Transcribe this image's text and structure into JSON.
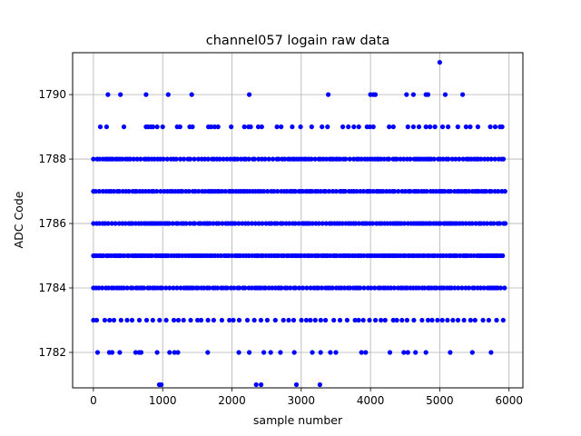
{
  "chart_data": {
    "type": "scatter",
    "title": "channel057 logain raw data",
    "xlabel": "sample number",
    "ylabel": "ADC Code",
    "xlim": [
      -300,
      6200
    ],
    "ylim": [
      1780.9,
      1791.3
    ],
    "xticks": [
      0,
      1000,
      2000,
      3000,
      4000,
      5000,
      6000
    ],
    "yticks": [
      1782,
      1784,
      1786,
      1788,
      1790
    ],
    "grid": true,
    "legend": "none",
    "marker_color": "#0000ff",
    "n_samples": 5950,
    "series": [
      {
        "name": "",
        "dense_levels": [
          1783,
          1784,
          1785,
          1786,
          1787,
          1788
        ],
        "sparse_points": [
          {
            "x": 950,
            "y": 1781
          },
          {
            "x": 980,
            "y": 1781
          },
          {
            "x": 2350,
            "y": 1781
          },
          {
            "x": 2420,
            "y": 1781
          },
          {
            "x": 2930,
            "y": 1781
          },
          {
            "x": 3270,
            "y": 1781
          },
          {
            "x": 60,
            "y": 1782
          },
          {
            "x": 230,
            "y": 1782
          },
          {
            "x": 270,
            "y": 1782
          },
          {
            "x": 380,
            "y": 1782
          },
          {
            "x": 610,
            "y": 1782
          },
          {
            "x": 660,
            "y": 1782
          },
          {
            "x": 690,
            "y": 1782
          },
          {
            "x": 920,
            "y": 1782
          },
          {
            "x": 1100,
            "y": 1782
          },
          {
            "x": 1170,
            "y": 1782
          },
          {
            "x": 1220,
            "y": 1782
          },
          {
            "x": 1650,
            "y": 1782
          },
          {
            "x": 2100,
            "y": 1782
          },
          {
            "x": 2250,
            "y": 1782
          },
          {
            "x": 2460,
            "y": 1782
          },
          {
            "x": 2560,
            "y": 1782
          },
          {
            "x": 2700,
            "y": 1782
          },
          {
            "x": 2900,
            "y": 1782
          },
          {
            "x": 3160,
            "y": 1782
          },
          {
            "x": 3280,
            "y": 1782
          },
          {
            "x": 3420,
            "y": 1782
          },
          {
            "x": 3500,
            "y": 1782
          },
          {
            "x": 3870,
            "y": 1782
          },
          {
            "x": 3930,
            "y": 1782
          },
          {
            "x": 4280,
            "y": 1782
          },
          {
            "x": 4480,
            "y": 1782
          },
          {
            "x": 4540,
            "y": 1782
          },
          {
            "x": 4650,
            "y": 1782
          },
          {
            "x": 4800,
            "y": 1782
          },
          {
            "x": 5150,
            "y": 1782
          },
          {
            "x": 5470,
            "y": 1782
          },
          {
            "x": 5740,
            "y": 1782
          },
          {
            "x": 100,
            "y": 1789
          },
          {
            "x": 190,
            "y": 1789
          },
          {
            "x": 440,
            "y": 1789
          },
          {
            "x": 760,
            "y": 1789
          },
          {
            "x": 790,
            "y": 1789
          },
          {
            "x": 830,
            "y": 1789
          },
          {
            "x": 860,
            "y": 1789
          },
          {
            "x": 920,
            "y": 1789
          },
          {
            "x": 1000,
            "y": 1789
          },
          {
            "x": 1210,
            "y": 1789
          },
          {
            "x": 1250,
            "y": 1789
          },
          {
            "x": 1390,
            "y": 1789
          },
          {
            "x": 1430,
            "y": 1789
          },
          {
            "x": 1660,
            "y": 1789
          },
          {
            "x": 1700,
            "y": 1789
          },
          {
            "x": 1750,
            "y": 1789
          },
          {
            "x": 1800,
            "y": 1789
          },
          {
            "x": 1990,
            "y": 1789
          },
          {
            "x": 2180,
            "y": 1789
          },
          {
            "x": 2240,
            "y": 1789
          },
          {
            "x": 2270,
            "y": 1789
          },
          {
            "x": 2380,
            "y": 1789
          },
          {
            "x": 2430,
            "y": 1789
          },
          {
            "x": 2650,
            "y": 1789
          },
          {
            "x": 2710,
            "y": 1789
          },
          {
            "x": 2870,
            "y": 1789
          },
          {
            "x": 2990,
            "y": 1789
          },
          {
            "x": 3150,
            "y": 1789
          },
          {
            "x": 3300,
            "y": 1789
          },
          {
            "x": 3380,
            "y": 1789
          },
          {
            "x": 3600,
            "y": 1789
          },
          {
            "x": 3680,
            "y": 1789
          },
          {
            "x": 3760,
            "y": 1789
          },
          {
            "x": 3830,
            "y": 1789
          },
          {
            "x": 3950,
            "y": 1789
          },
          {
            "x": 3990,
            "y": 1789
          },
          {
            "x": 4040,
            "y": 1789
          },
          {
            "x": 4270,
            "y": 1789
          },
          {
            "x": 4330,
            "y": 1789
          },
          {
            "x": 4540,
            "y": 1789
          },
          {
            "x": 4620,
            "y": 1789
          },
          {
            "x": 4700,
            "y": 1789
          },
          {
            "x": 4800,
            "y": 1789
          },
          {
            "x": 4860,
            "y": 1789
          },
          {
            "x": 4930,
            "y": 1789
          },
          {
            "x": 5040,
            "y": 1789
          },
          {
            "x": 5120,
            "y": 1789
          },
          {
            "x": 5260,
            "y": 1789
          },
          {
            "x": 5380,
            "y": 1789
          },
          {
            "x": 5440,
            "y": 1789
          },
          {
            "x": 5550,
            "y": 1789
          },
          {
            "x": 5730,
            "y": 1789
          },
          {
            "x": 5800,
            "y": 1789
          },
          {
            "x": 5870,
            "y": 1789
          },
          {
            "x": 5900,
            "y": 1789
          },
          {
            "x": 210,
            "y": 1790
          },
          {
            "x": 390,
            "y": 1790
          },
          {
            "x": 760,
            "y": 1790
          },
          {
            "x": 1080,
            "y": 1790
          },
          {
            "x": 1420,
            "y": 1790
          },
          {
            "x": 2250,
            "y": 1790
          },
          {
            "x": 3390,
            "y": 1790
          },
          {
            "x": 4000,
            "y": 1790
          },
          {
            "x": 4040,
            "y": 1790
          },
          {
            "x": 4070,
            "y": 1790
          },
          {
            "x": 4520,
            "y": 1790
          },
          {
            "x": 4620,
            "y": 1790
          },
          {
            "x": 4800,
            "y": 1790
          },
          {
            "x": 4830,
            "y": 1790
          },
          {
            "x": 5080,
            "y": 1790
          },
          {
            "x": 5330,
            "y": 1790
          },
          {
            "x": 5000,
            "y": 1791
          }
        ]
      }
    ]
  }
}
